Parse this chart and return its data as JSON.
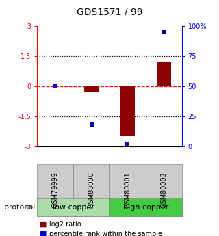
{
  "title": "GDS1571 / 99",
  "samples": [
    "GSM79999",
    "GSM80000",
    "GSM80001",
    "GSM80002"
  ],
  "log2_ratio": [
    0.0,
    -0.3,
    -2.5,
    1.2
  ],
  "percentile": [
    50,
    18,
    2,
    95
  ],
  "ylim_left": [
    -3,
    3
  ],
  "ylim_right": [
    0,
    100
  ],
  "yticks_left": [
    -3,
    -1.5,
    0,
    1.5,
    3
  ],
  "ytick_labels_left": [
    "-3",
    "-1.5",
    "0",
    "1.5",
    "3"
  ],
  "yticks_right": [
    0,
    25,
    50,
    75,
    100
  ],
  "ytick_labels_right": [
    "0",
    "25",
    "50",
    "75",
    "100%"
  ],
  "hlines": [
    -1.5,
    0,
    1.5
  ],
  "hline_styles": [
    "dotted",
    "dashed",
    "dotted"
  ],
  "hline_colors": [
    "black",
    "red",
    "black"
  ],
  "bar_color": "#8B0000",
  "dot_color": "#0000CC",
  "bar_width": 0.4,
  "groups": [
    {
      "label": "low copper",
      "samples": [
        0,
        1
      ],
      "color": "#aaddaa"
    },
    {
      "label": "high copper",
      "samples": [
        2,
        3
      ],
      "color": "#44cc44"
    }
  ],
  "legend_items": [
    {
      "label": "log2 ratio",
      "color": "#8B0000"
    },
    {
      "label": "percentile rank within the sample",
      "color": "#0000CC"
    }
  ],
  "protocol_label": "protocol",
  "background_color": "#ffffff",
  "sample_box_color": "#cccccc",
  "title_fontsize": 10,
  "tick_fontsize": 7,
  "sample_fontsize": 7,
  "group_fontsize": 8,
  "legend_fontsize": 7
}
